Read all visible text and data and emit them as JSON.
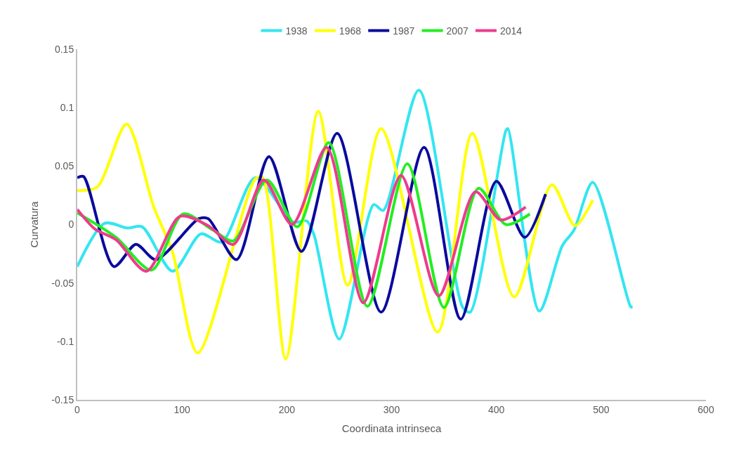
{
  "chart_data": {
    "type": "line",
    "xlabel": "Coordinata intrinseca",
    "ylabel": "Curvatura",
    "xlim": [
      0,
      600
    ],
    "xticks": [
      0,
      100,
      200,
      300,
      400,
      500,
      600
    ],
    "ylim": [
      -0.15,
      0.15
    ],
    "yticks": [
      -0.15,
      -0.1,
      -0.05,
      0,
      0.05,
      0.1,
      0.15
    ],
    "grid": false,
    "legend": "top",
    "line_style": "solid",
    "series": [
      {
        "name": "1938",
        "color": "#33e6f0",
        "x": [
          0,
          26,
          48,
          62,
          91,
          118,
          138,
          170,
          206,
          219,
          226,
          250,
          283,
          292,
          326,
          368,
          375,
          409,
          411,
          441,
          463,
          474,
          492,
          528,
          530
        ],
        "values": [
          -0.036,
          0.001,
          -0.003,
          -0.002,
          -0.04,
          -0.008,
          -0.015,
          0.04,
          0.002,
          0.003,
          -0.009,
          -0.098,
          0.017,
          0.012,
          0.115,
          -0.071,
          -0.075,
          0.08,
          0.082,
          -0.074,
          -0.018,
          -0.005,
          0.036,
          -0.07,
          -0.071
        ]
      },
      {
        "name": "1968",
        "color": "#ffff00",
        "x": [
          0,
          19,
          47,
          73,
          91,
          115,
          170,
          177,
          199,
          230,
          258,
          290,
          344,
          377,
          417,
          453,
          475,
          492
        ],
        "values": [
          0.029,
          0.032,
          0.086,
          0.015,
          -0.024,
          -0.11,
          0.039,
          0.04,
          -0.115,
          0.097,
          -0.052,
          0.082,
          -0.092,
          0.078,
          -0.062,
          0.034,
          -0.001,
          0.021
        ]
      },
      {
        "name": "1987",
        "color": "#0a0a9e",
        "x": [
          0,
          6,
          35,
          56,
          75,
          116,
          125,
          152,
          183,
          214,
          248,
          290,
          331,
          366,
          400,
          427,
          447
        ],
        "values": [
          0.04,
          0.041,
          -0.036,
          -0.017,
          -0.03,
          0.005,
          0.005,
          -0.03,
          0.058,
          -0.023,
          0.078,
          -0.075,
          0.066,
          -0.081,
          0.037,
          -0.011,
          0.026
        ]
      },
      {
        "name": "2007",
        "color": "#22ee22",
        "x": [
          0,
          37,
          71,
          101,
          130,
          149,
          181,
          210,
          240,
          277,
          315,
          350,
          383,
          409,
          432
        ],
        "values": [
          0.01,
          -0.011,
          -0.039,
          0.009,
          -0.005,
          -0.014,
          0.038,
          -0.002,
          0.07,
          -0.07,
          0.052,
          -0.071,
          0.031,
          0.0,
          0.009
        ]
      },
      {
        "name": "2014",
        "color": "#ee3b8c",
        "x": [
          0,
          17,
          37,
          66,
          98,
          125,
          149,
          178,
          205,
          238,
          273,
          309,
          345,
          380,
          404,
          428
        ],
        "values": [
          0.013,
          -0.004,
          -0.013,
          -0.04,
          0.007,
          -0.001,
          -0.017,
          0.038,
          0.0,
          0.066,
          -0.067,
          0.042,
          -0.061,
          0.028,
          0.004,
          0.015
        ]
      }
    ]
  }
}
